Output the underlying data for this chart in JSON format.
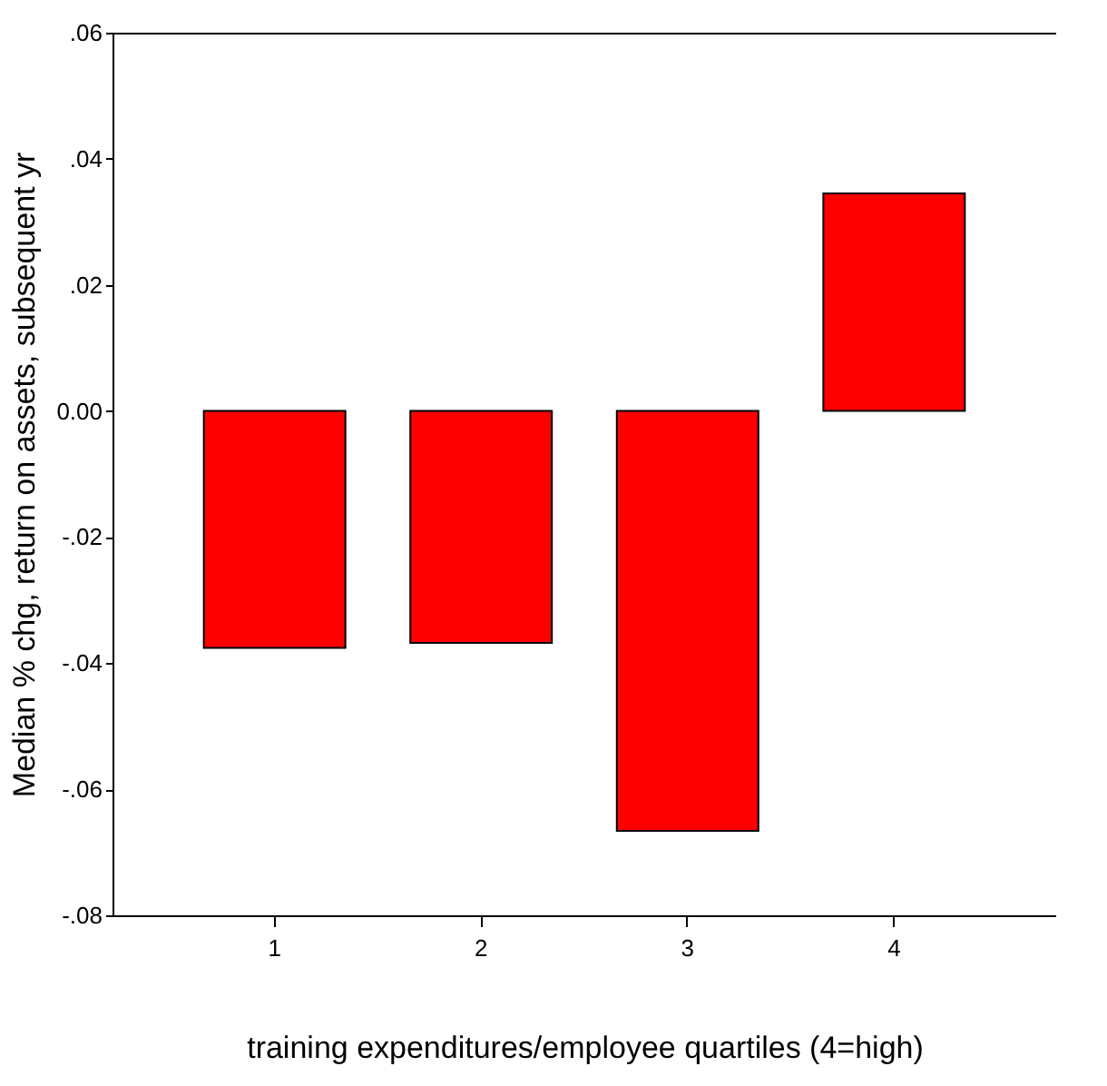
{
  "chart_data": {
    "type": "bar",
    "xlabel": "training expenditures/employee quartiles (4=high)",
    "ylabel": "Median % chg, return on assets, subsequent yr",
    "categories": [
      "1",
      "2",
      "3",
      "4"
    ],
    "values": [
      -0.0376,
      -0.0368,
      -0.0666,
      0.0345
    ],
    "color": "#ff0000",
    "ylim": [
      -0.08,
      0.06
    ],
    "yticks": [
      {
        "value": -0.08,
        "label": "-.08"
      },
      {
        "value": -0.06,
        "label": "-.06"
      },
      {
        "value": -0.04,
        "label": "-.04"
      },
      {
        "value": -0.02,
        "label": "-.02"
      },
      {
        "value": 0,
        "label": "0.00"
      },
      {
        "value": 0.02,
        "label": ".02"
      },
      {
        "value": 0.04,
        "label": ".04"
      },
      {
        "value": 0.06,
        "label": ".06"
      }
    ],
    "grid": false
  }
}
